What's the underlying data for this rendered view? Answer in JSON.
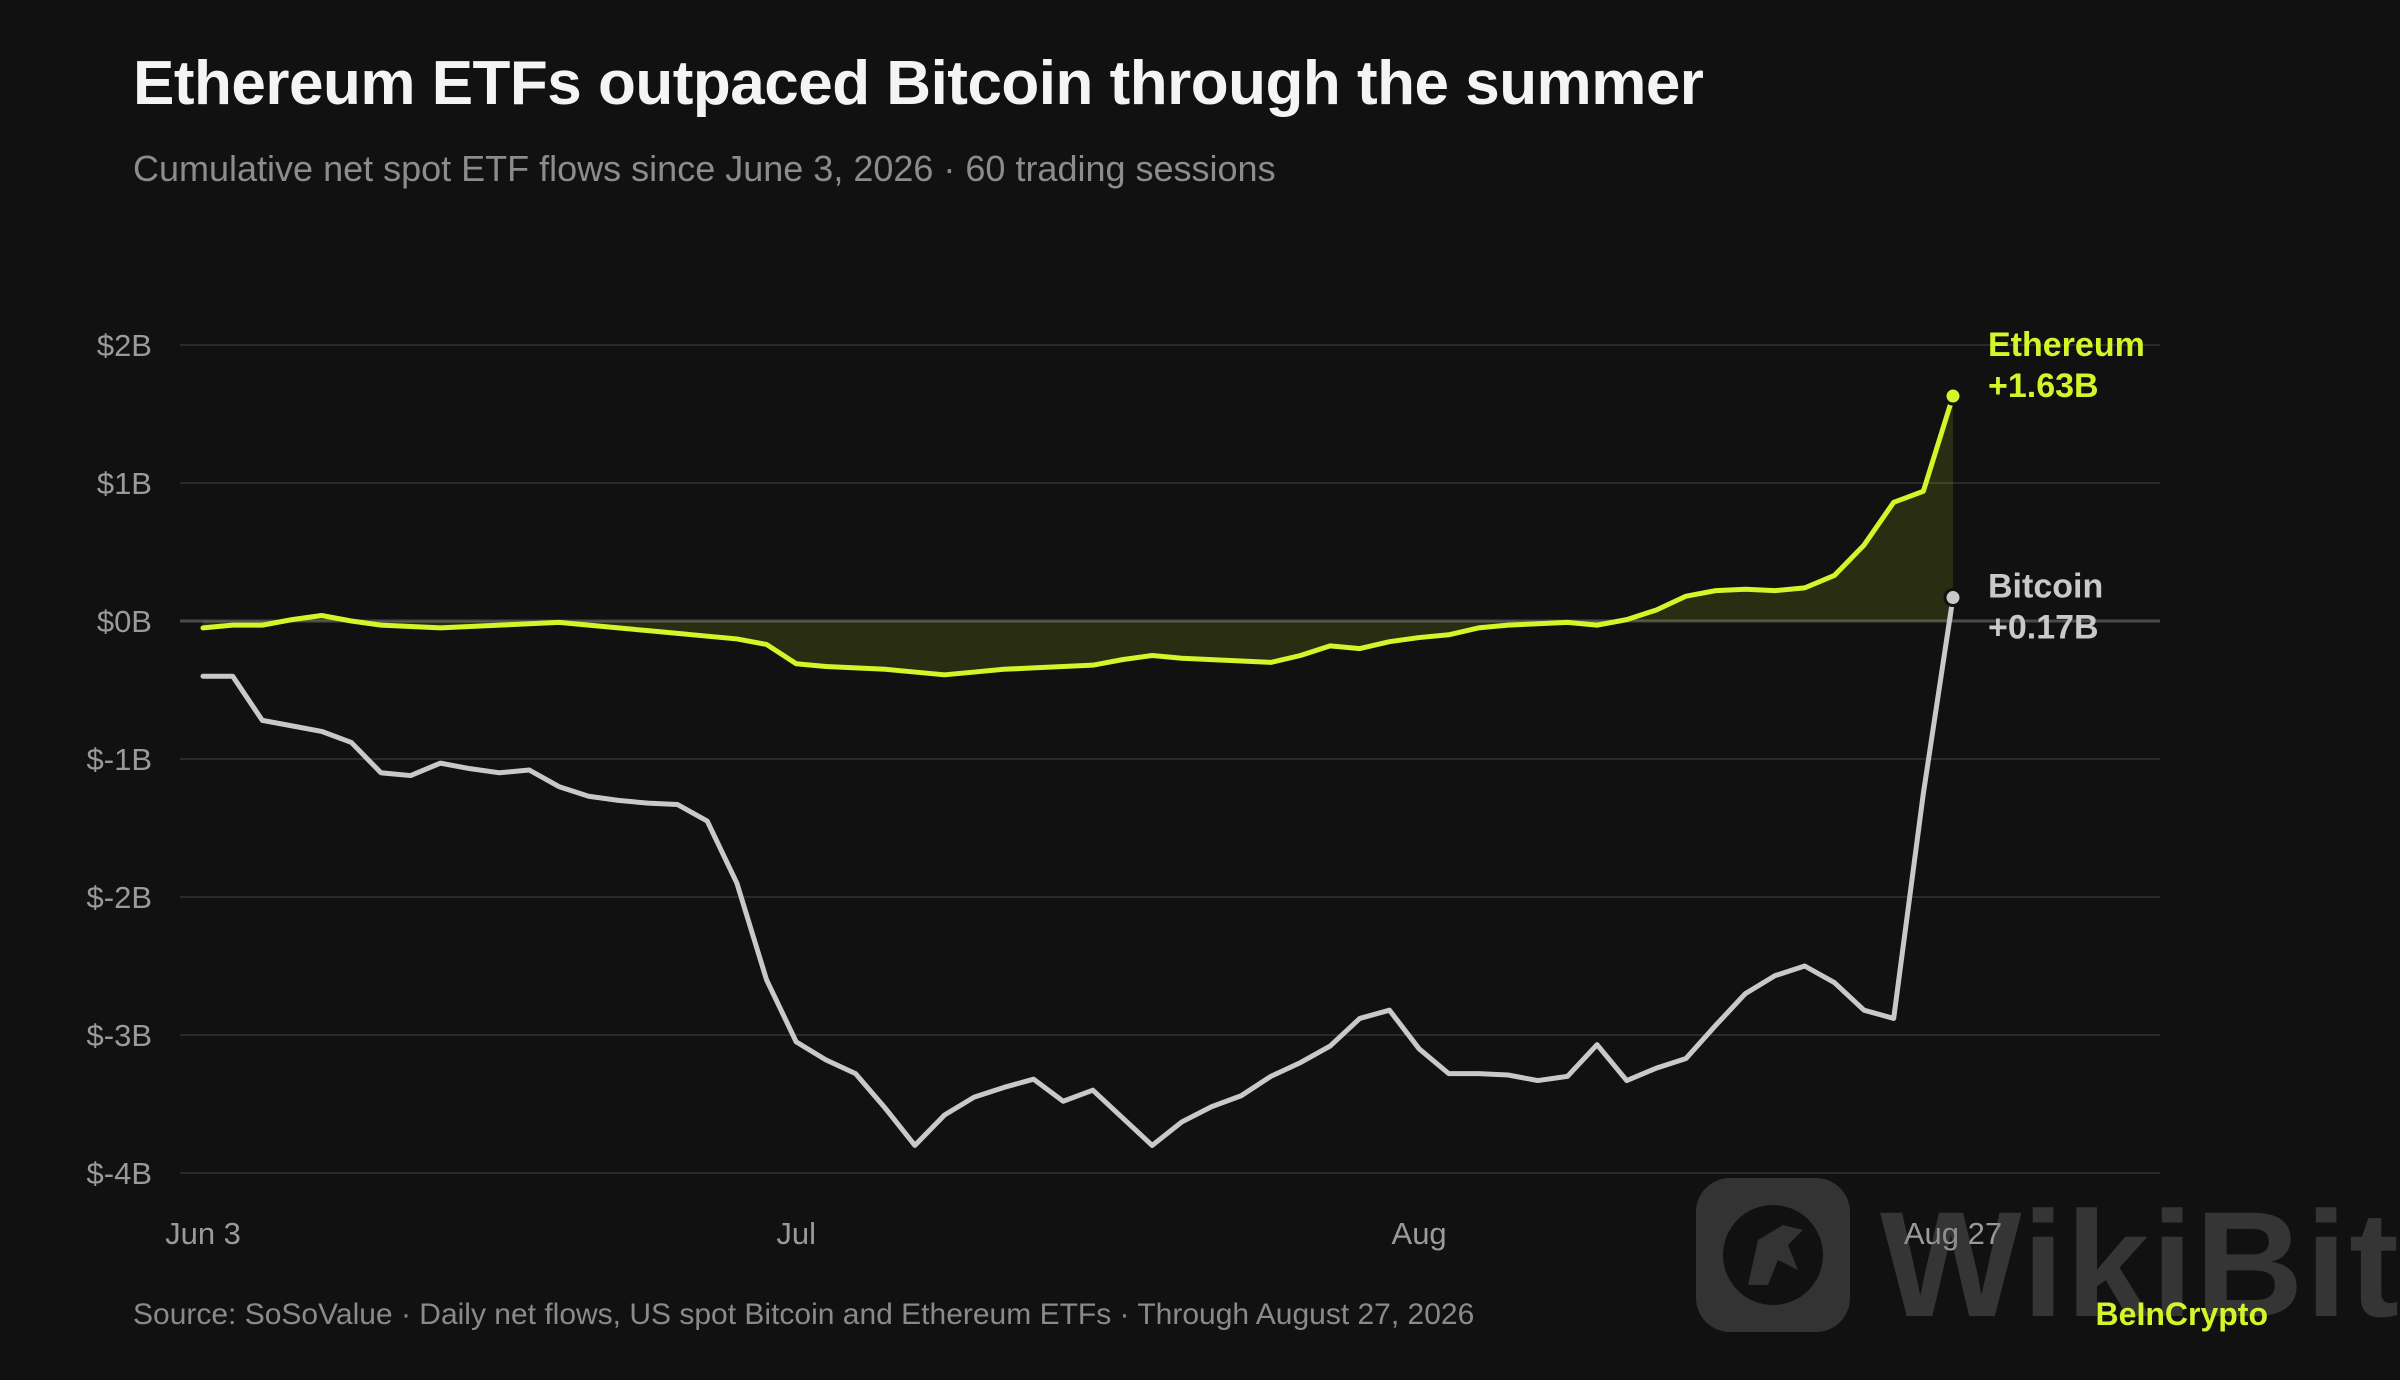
{
  "title": "Ethereum ETFs outpaced Bitcoin through the summer",
  "subtitle": "Cumulative net spot ETF flows since June 3, 2026 · 60 trading sessions",
  "source": "Source: SoSoValue · Daily net flows, US spot Bitcoin and Ethereum ETFs · Through August 27, 2026",
  "brand": "BeInCrypto",
  "watermark_text": "WikiBit",
  "chart_data": {
    "type": "line",
    "ylim": [
      -4,
      2
    ],
    "yticks": [
      2,
      1,
      0,
      -1,
      -2,
      -3,
      -4
    ],
    "ytick_labels": [
      "$2B",
      "$1B",
      "$0B",
      "$-1B",
      "$-2B",
      "$-3B",
      "$-4B"
    ],
    "xlim": [
      0,
      59
    ],
    "xticks": [
      {
        "index": 0,
        "label": "Jun 3"
      },
      {
        "index": 20,
        "label": "Jul"
      },
      {
        "index": 41,
        "label": "Aug"
      },
      {
        "index": 59,
        "label": "Aug 27"
      }
    ],
    "grid": true,
    "series": [
      {
        "name": "Ethereum",
        "end_label": "+1.63B",
        "color": "#d4f52a",
        "fill_to_zero": true,
        "values": [
          -0.05,
          -0.03,
          -0.03,
          0.01,
          0.04,
          0.0,
          -0.03,
          -0.04,
          -0.05,
          -0.04,
          -0.03,
          -0.02,
          -0.01,
          -0.03,
          -0.05,
          -0.07,
          -0.09,
          -0.11,
          -0.13,
          -0.17,
          -0.31,
          -0.33,
          -0.34,
          -0.35,
          -0.37,
          -0.39,
          -0.37,
          -0.35,
          -0.34,
          -0.33,
          -0.32,
          -0.28,
          -0.25,
          -0.27,
          -0.28,
          -0.29,
          -0.3,
          -0.25,
          -0.18,
          -0.2,
          -0.15,
          -0.12,
          -0.1,
          -0.05,
          -0.03,
          -0.02,
          -0.01,
          -0.03,
          0.01,
          0.08,
          0.18,
          0.22,
          0.23,
          0.22,
          0.24,
          0.33,
          0.55,
          0.86,
          0.94,
          1.63
        ]
      },
      {
        "name": "Bitcoin",
        "end_label": "+0.17B",
        "color": "#c9c9c9",
        "fill_to_zero": false,
        "values": [
          -0.4,
          -0.4,
          -0.72,
          -0.76,
          -0.8,
          -0.88,
          -1.1,
          -1.12,
          -1.03,
          -1.07,
          -1.1,
          -1.08,
          -1.2,
          -1.27,
          -1.3,
          -1.32,
          -1.33,
          -1.45,
          -1.9,
          -2.6,
          -3.05,
          -3.18,
          -3.28,
          -3.53,
          -3.8,
          -3.58,
          -3.45,
          -3.38,
          -3.32,
          -3.48,
          -3.4,
          -3.6,
          -3.8,
          -3.63,
          -3.52,
          -3.44,
          -3.3,
          -3.2,
          -3.08,
          -2.88,
          -2.82,
          -3.1,
          -3.28,
          -3.28,
          -3.29,
          -3.33,
          -3.3,
          -3.07,
          -3.33,
          -3.24,
          -3.17,
          -2.93,
          -2.7,
          -2.57,
          -2.5,
          -2.62,
          -2.82,
          -2.88,
          -1.25,
          0.17
        ]
      }
    ]
  },
  "colors": {
    "background": "#111111",
    "ethereum": "#d4f52a",
    "bitcoin": "#c9c9c9",
    "grid": "#2a2a2a",
    "zero_line": "#4a4a4a"
  }
}
